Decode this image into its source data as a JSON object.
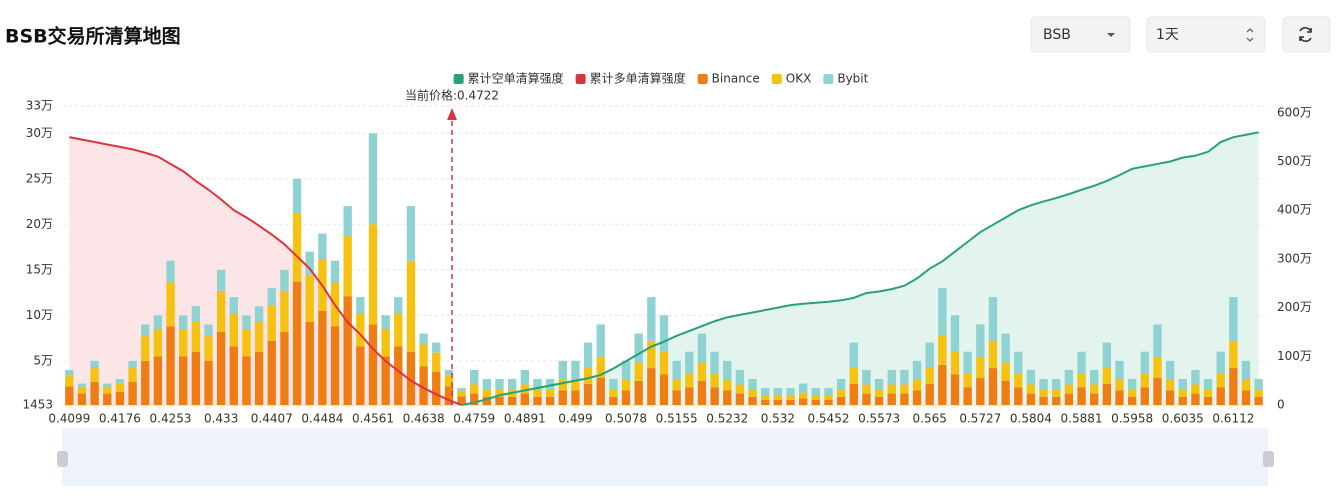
{
  "header": {
    "title": "BSB交易所清算地图",
    "symbol_select": "BSB",
    "period_select": "1天"
  },
  "chart_data": {
    "type": "bar",
    "stacked": true,
    "annotation": "当前价格:0.4722",
    "categories": [
      "0.4099",
      null,
      null,
      null,
      "0.4176",
      null,
      null,
      null,
      "0.4253",
      null,
      null,
      null,
      "0.433",
      null,
      null,
      null,
      "0.4407",
      null,
      null,
      null,
      "0.4484",
      null,
      null,
      null,
      "0.4561",
      null,
      null,
      null,
      "0.4638",
      null,
      null,
      null,
      "0.4759",
      null,
      null,
      null,
      "0.4891",
      null,
      null,
      null,
      "0.499",
      null,
      null,
      null,
      "0.5078",
      null,
      null,
      null,
      "0.5155",
      null,
      null,
      null,
      "0.5232",
      null,
      null,
      null,
      "0.532",
      null,
      null,
      null,
      "0.5452",
      null,
      null,
      null,
      "0.5573",
      null,
      null,
      null,
      "0.565",
      null,
      null,
      null,
      "0.5727",
      null,
      null,
      null,
      "0.5804",
      null,
      null,
      null,
      "0.5881",
      null,
      null,
      null,
      "0.5958",
      null,
      null,
      null,
      "0.6035",
      null,
      null,
      null,
      "0.6112",
      null,
      null
    ],
    "ylim": [
      1453,
      330000
    ],
    "yticks": [
      1453,
      {
        "value": 50000,
        "label": "5万"
      },
      {
        "value": 100000,
        "label": "10万"
      },
      {
        "value": 150000,
        "label": "15万"
      },
      {
        "value": 200000,
        "label": "20万"
      },
      {
        "value": 250000,
        "label": "25万"
      },
      {
        "value": 300000,
        "label": "30万"
      },
      {
        "value": 330000,
        "label": "33万"
      }
    ],
    "y2lim": [
      0,
      6140000
    ],
    "y2ticks": [
      0,
      {
        "value": 1000000,
        "label": "100万"
      },
      {
        "value": 2000000,
        "label": "200万"
      },
      {
        "value": 3000000,
        "label": "300万"
      },
      {
        "value": 4000000,
        "label": "400万"
      },
      {
        "value": 5000000,
        "label": "500万"
      },
      {
        "value": 6000000,
        "label": "600万"
      }
    ],
    "grid": true,
    "legend": "top",
    "series": [
      {
        "name": "累计空单清算强度",
        "type": "line",
        "axis": "y2",
        "area": true,
        "color": "#26a17b",
        "fill": "#e3f4ee",
        "values": [
          null,
          null,
          null,
          null,
          null,
          null,
          null,
          null,
          null,
          null,
          null,
          null,
          null,
          null,
          null,
          null,
          null,
          null,
          null,
          null,
          null,
          null,
          null,
          null,
          null,
          null,
          null,
          null,
          null,
          null,
          null,
          0,
          50000,
          120000,
          200000,
          250000,
          300000,
          350000,
          400000,
          450000,
          500000,
          550000,
          620000,
          750000,
          900000,
          1050000,
          1200000,
          1300000,
          1420000,
          1520000,
          1620000,
          1720000,
          1800000,
          1850000,
          1900000,
          1950000,
          2000000,
          2050000,
          2080000,
          2100000,
          2120000,
          2150000,
          2200000,
          2300000,
          2330000,
          2380000,
          2450000,
          2600000,
          2800000,
          2950000,
          3150000,
          3350000,
          3550000,
          3700000,
          3850000,
          4000000,
          4100000,
          4180000,
          4250000,
          4330000,
          4420000,
          4500000,
          4600000,
          4720000,
          4850000,
          4900000,
          4950000,
          5000000,
          5080000,
          5120000,
          5200000,
          5400000,
          5500000,
          5550000,
          5600000
        ]
      },
      {
        "name": "累计多单清算强度",
        "type": "line",
        "axis": "y2",
        "area": true,
        "color": "#e0323e",
        "fill": "#fbe5e7",
        "values": [
          5500000,
          5450000,
          5400000,
          5350000,
          5300000,
          5250000,
          5180000,
          5100000,
          4950000,
          4800000,
          4600000,
          4420000,
          4220000,
          4000000,
          3850000,
          3680000,
          3500000,
          3300000,
          3050000,
          2800000,
          2450000,
          2050000,
          1700000,
          1450000,
          1150000,
          900000,
          700000,
          500000,
          350000,
          220000,
          100000,
          0,
          null,
          null,
          null,
          null,
          null,
          null,
          null,
          null,
          null,
          null,
          null,
          null,
          null,
          null,
          null,
          null,
          null,
          null,
          null,
          null,
          null,
          null,
          null,
          null,
          null,
          null,
          null,
          null,
          null,
          null,
          null,
          null,
          null,
          null,
          null,
          null,
          null,
          null,
          null,
          null,
          null,
          null,
          null,
          null,
          null,
          null,
          null,
          null,
          null,
          null,
          null,
          null,
          null,
          null,
          null,
          null,
          null,
          null,
          null,
          null,
          null,
          null,
          null
        ]
      },
      {
        "name": "Binance",
        "color": "#ee7d14",
        "values": [
          22000,
          14000,
          27000,
          14000,
          16000,
          27000,
          50000,
          55000,
          88000,
          55000,
          60000,
          50000,
          82000,
          66000,
          55000,
          60000,
          72000,
          82000,
          137000,
          93000,
          105000,
          88000,
          121000,
          66000,
          90000,
          55000,
          66000,
          60000,
          44000,
          38000,
          22000,
          11000,
          14000,
          10500,
          10500,
          10500,
          14000,
          10500,
          10500,
          17500,
          17500,
          24500,
          31500,
          10500,
          17500,
          28000,
          42000,
          35000,
          17500,
          21000,
          28000,
          21000,
          17500,
          14000,
          10500,
          7000,
          7000,
          7000,
          8750,
          7000,
          7000,
          10500,
          24500,
          14000,
          10500,
          14000,
          14000,
          17500,
          24500,
          45500,
          35000,
          21000,
          31500,
          42000,
          28000,
          21000,
          14000,
          10500,
          10500,
          14000,
          21000,
          14000,
          24500,
          17500,
          10500,
          21000,
          31500,
          17500,
          10500,
          14000,
          10500,
          21000,
          42000,
          17500,
          10500
        ]
      },
      {
        "name": "OKX",
        "color": "#f5c211",
        "values": [
          12000,
          7000,
          15000,
          7000,
          9000,
          15000,
          27000,
          30000,
          48000,
          30000,
          33000,
          27000,
          45000,
          36000,
          30000,
          33000,
          39000,
          45000,
          75000,
          51000,
          57000,
          48000,
          66000,
          36000,
          110000,
          30000,
          36000,
          100000,
          24000,
          21000,
          12000,
          6000,
          10000,
          7500,
          7500,
          7500,
          10000,
          7500,
          7500,
          12500,
          12500,
          17500,
          22500,
          7500,
          12500,
          20000,
          30000,
          25000,
          12500,
          15000,
          20000,
          15000,
          12500,
          10000,
          7500,
          5000,
          5000,
          5000,
          6250,
          5000,
          5000,
          7500,
          17500,
          10000,
          7500,
          10000,
          10000,
          12500,
          17500,
          32500,
          25000,
          15000,
          22500,
          30000,
          20000,
          15000,
          10000,
          7500,
          7500,
          10000,
          15000,
          10000,
          17500,
          12500,
          7500,
          15000,
          22500,
          12500,
          7500,
          10000,
          7500,
          15000,
          30000,
          12500,
          7500
        ]
      },
      {
        "name": "Bybit",
        "color": "#8ed2d2",
        "values": [
          6000,
          4000,
          8000,
          4000,
          5000,
          8000,
          13000,
          15000,
          24000,
          15000,
          17000,
          13000,
          23000,
          18000,
          15000,
          17000,
          19000,
          23000,
          38000,
          26000,
          28000,
          24000,
          33000,
          18000,
          100000,
          15000,
          18000,
          60000,
          12000,
          11000,
          6000,
          3000,
          16000,
          12000,
          12000,
          12000,
          16000,
          12000,
          12000,
          20000,
          20000,
          28000,
          36000,
          12000,
          20000,
          32000,
          48000,
          40000,
          20000,
          24000,
          32000,
          24000,
          20000,
          16000,
          12000,
          8000,
          8000,
          8000,
          10000,
          8000,
          8000,
          12000,
          28000,
          16000,
          12000,
          16000,
          16000,
          20000,
          28000,
          52000,
          40000,
          24000,
          36000,
          48000,
          32000,
          24000,
          16000,
          12000,
          12000,
          16000,
          24000,
          16000,
          28000,
          20000,
          12000,
          24000,
          36000,
          20000,
          12000,
          16000,
          12000,
          24000,
          48000,
          20000,
          12000
        ]
      }
    ]
  }
}
